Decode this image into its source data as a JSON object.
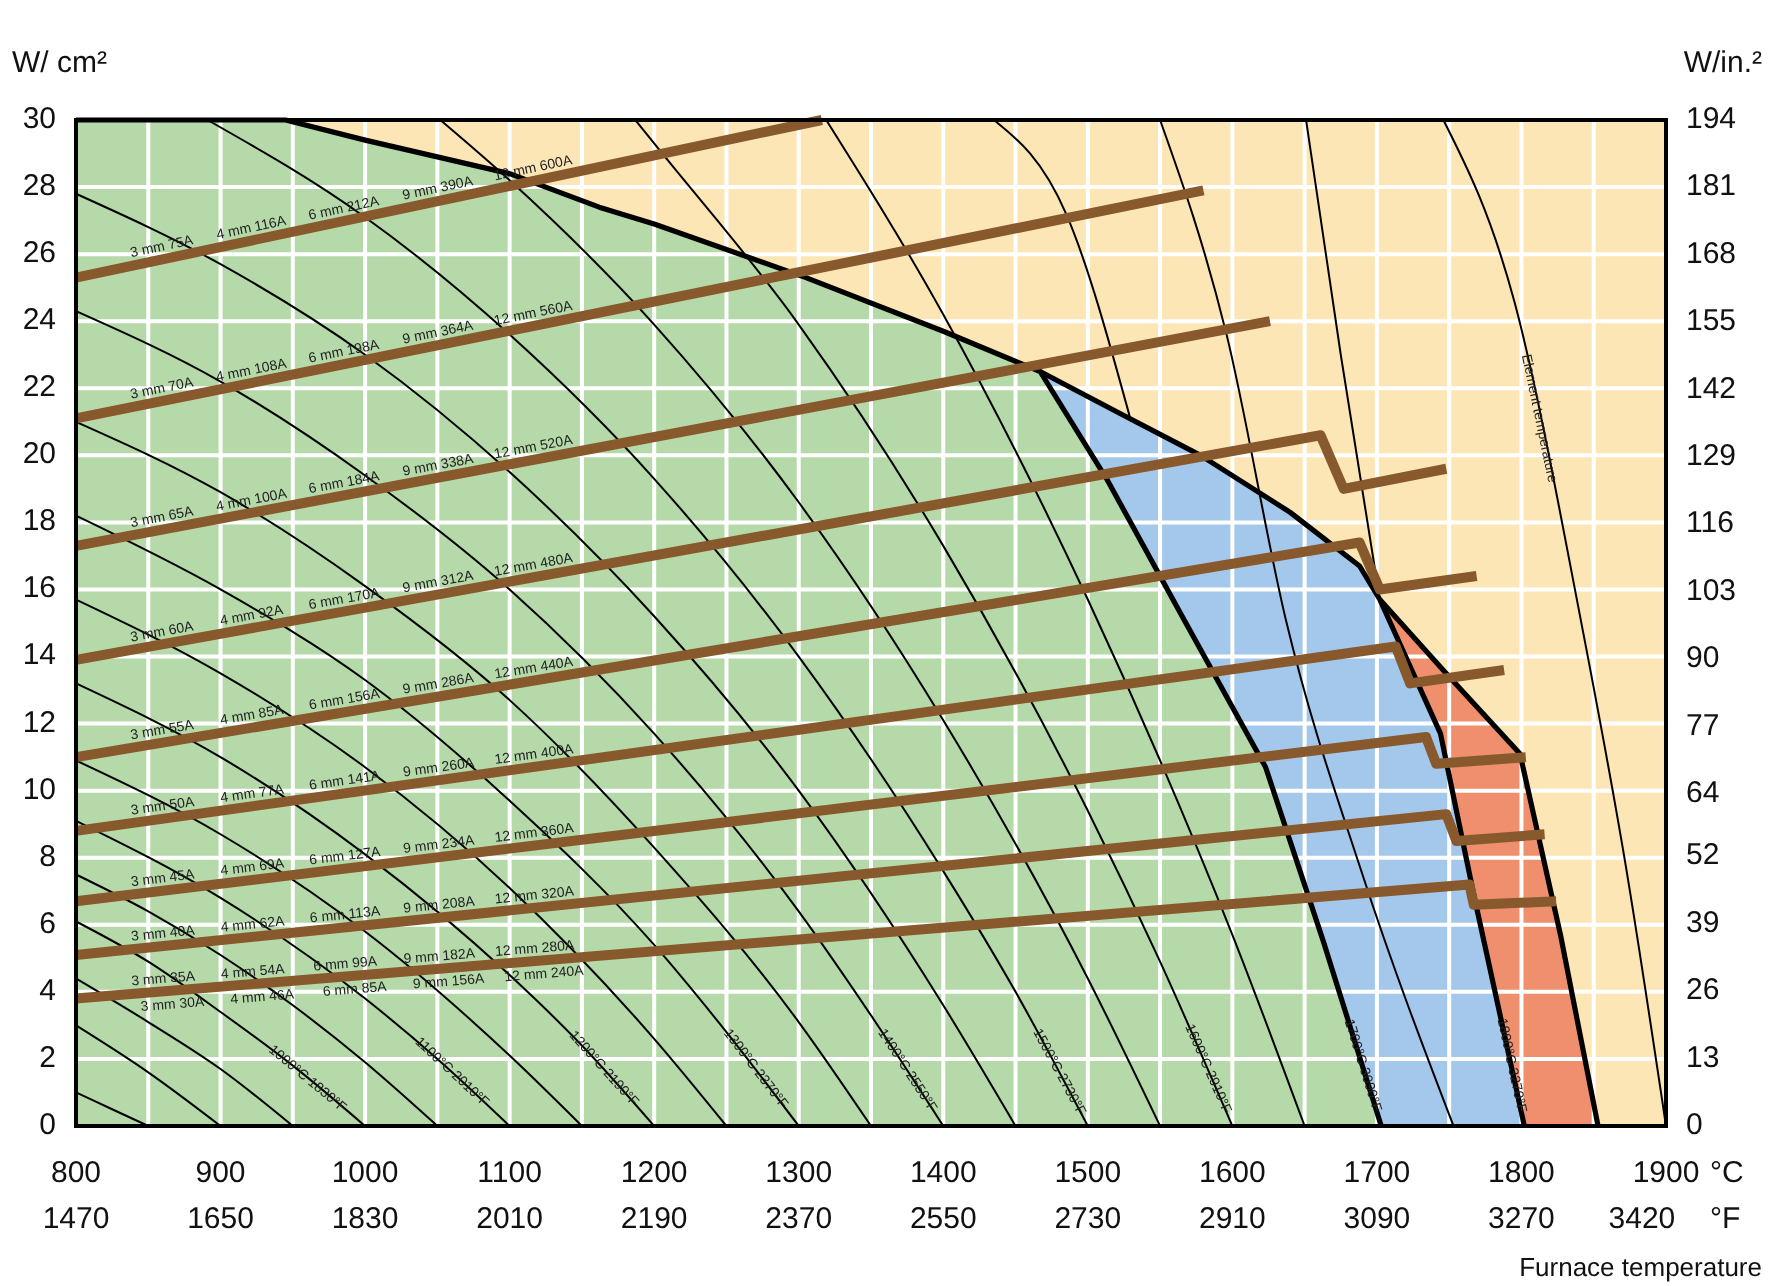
{
  "chart_data": {
    "type": "line",
    "xlabel": "Furnace temperature",
    "ylabel": "W/ cm²",
    "y2label": "W/in.²",
    "xlim": [
      800,
      1900
    ],
    "xticks": [
      800,
      {
        "value": 850,
        "label": null
      },
      900,
      {
        "value": 950,
        "label": null
      },
      1000,
      {
        "value": 1050,
        "label": null
      },
      1100,
      {
        "value": 1150,
        "label": null
      },
      1200,
      {
        "value": 1250,
        "label": null
      },
      1300,
      {
        "value": 1350,
        "label": null
      },
      1400,
      {
        "value": 1450,
        "label": null
      },
      1500,
      {
        "value": 1550,
        "label": null
      },
      1600,
      {
        "value": 1650,
        "label": null
      },
      1700,
      {
        "value": 1750,
        "label": null
      },
      1800,
      {
        "value": 1850,
        "label": null
      },
      1900
    ],
    "x2lim": [
      1470,
      3450
    ],
    "x2ticks": [
      1470,
      1650,
      1830,
      2010,
      2190,
      2370,
      2550,
      2730,
      2910,
      3090,
      3270,
      3420
    ],
    "ylim": [
      0,
      30
    ],
    "yticks": [
      0,
      2,
      4,
      6,
      8,
      10,
      12,
      14,
      16,
      18,
      20,
      22,
      24,
      26,
      28,
      30
    ],
    "y2lim": [
      0,
      194
    ],
    "y2ticks": [
      0,
      13,
      26,
      39,
      52,
      64,
      77,
      90,
      103,
      116,
      129,
      142,
      155,
      168,
      181,
      194
    ],
    "grid": true,
    "bands": [
      {
        "axis": "x",
        "from": 800,
        "to": 1900,
        "color": "#fde6b6"
      }
    ],
    "series": [
      {
        "type": "area",
        "color": "#ef8f6e",
        "x": [
          1702,
          1750,
          1799,
          1827,
          1853
        ],
        "values": [
          15.7,
          13.4,
          11.1,
          5.7,
          0
        ]
      },
      {
        "type": "area",
        "color": "#a3c8ec",
        "x": [
          1467,
          1520,
          1578,
          1640,
          1688,
          1702,
          1744,
          1767,
          1802
        ],
        "values": [
          22.5,
          21.3,
          20.0,
          18.3,
          16.7,
          15.7,
          11.7,
          6.9,
          0
        ]
      },
      {
        "type": "area",
        "color": "#b5d9a9",
        "x": [
          800,
          945,
          1000,
          1100,
          1162,
          1200,
          1305,
          1400,
          1467,
          1513,
          1564,
          1623,
          1663,
          1703
        ],
        "values": [
          30,
          30,
          29.4,
          28.4,
          27.4,
          26.9,
          25.3,
          23.7,
          22.5,
          19.3,
          15.3,
          10.7,
          5.5,
          0
        ]
      },
      {
        "color": "#000000",
        "x": [
          800,
          825,
          850
        ],
        "values": [
          1.0,
          0.5,
          0
        ]
      },
      {
        "color": "#000000",
        "x": [
          800,
          850,
          900
        ],
        "values": [
          3.0,
          1.6,
          0
        ]
      },
      {
        "color": "#000000",
        "x": [
          800,
          850,
          900,
          950
        ],
        "values": [
          4.4,
          3.1,
          1.7,
          0
        ]
      },
      {
        "color": "#000000",
        "x": [
          800,
          850,
          900,
          950,
          1000
        ],
        "values": [
          6.1,
          4.9,
          3.4,
          1.8,
          0
        ]
      },
      {
        "color": "#000000",
        "x": [
          800,
          850,
          900,
          950,
          1000,
          1050
        ],
        "values": [
          7.5,
          6.4,
          5.1,
          3.6,
          1.9,
          0
        ]
      },
      {
        "color": "#000000",
        "x": [
          800,
          900,
          1000,
          1050,
          1100
        ],
        "values": [
          9.1,
          6.8,
          3.8,
          2.0,
          0
        ]
      },
      {
        "color": "#000000",
        "x": [
          800,
          900,
          1000,
          1100,
          1150
        ],
        "values": [
          10.9,
          8.7,
          5.8,
          2.1,
          0
        ]
      },
      {
        "color": "#000000",
        "x": [
          800,
          900,
          1000,
          1100,
          1150,
          1200
        ],
        "values": [
          13.2,
          11.0,
          8.1,
          4.5,
          2.4,
          0
        ]
      },
      {
        "color": "#000000",
        "x": [
          800,
          900,
          1000,
          1100,
          1200,
          1250
        ],
        "values": [
          15.7,
          13.5,
          10.7,
          7.1,
          2.6,
          0
        ]
      },
      {
        "color": "#000000",
        "x": [
          800,
          900,
          1000,
          1100,
          1200,
          1250,
          1300
        ],
        "values": [
          18.2,
          16.0,
          13.3,
          9.7,
          5.4,
          2.8,
          0
        ]
      },
      {
        "color": "#000000",
        "x": [
          800,
          900,
          1000,
          1100,
          1200,
          1300,
          1350
        ],
        "values": [
          21.0,
          18.9,
          16.1,
          12.7,
          8.3,
          3.1,
          0
        ]
      },
      {
        "color": "#000000",
        "x": [
          800,
          900,
          1000,
          1100,
          1200,
          1300,
          1350,
          1400
        ],
        "values": [
          24.3,
          22.2,
          19.4,
          16.0,
          11.7,
          6.4,
          3.3,
          0
        ]
      },
      {
        "color": "#000000",
        "x": [
          800,
          900,
          1000,
          1100,
          1200,
          1300,
          1400,
          1450
        ],
        "values": [
          27.8,
          25.7,
          23.0,
          19.5,
          15.2,
          10.0,
          3.6,
          0
        ]
      },
      {
        "color": "#000000",
        "x": [
          891,
          1000,
          1100,
          1200,
          1300,
          1400,
          1450,
          1500
        ],
        "values": [
          30,
          27.1,
          23.6,
          19.3,
          14.0,
          7.6,
          4.0,
          0
        ]
      },
      {
        "color": "#000000",
        "x": [
          1052,
          1100,
          1200,
          1300,
          1400,
          1500,
          1550
        ],
        "values": [
          30,
          28.2,
          23.9,
          18.6,
          12.1,
          4.4,
          0
        ]
      },
      {
        "color": "#000000",
        "x": [
          1187,
          1200,
          1300,
          1400,
          1500,
          1550,
          1600
        ],
        "values": [
          30,
          29.3,
          23.9,
          17.3,
          9.4,
          4.9,
          0
        ]
      },
      {
        "color": "#000000",
        "x": [
          1319,
          1400,
          1500,
          1550,
          1600,
          1650
        ],
        "values": [
          30,
          24.2,
          15.7,
          10.9,
          5.7,
          0
        ]
      },
      {
        "color": "#000000",
        "x": [
          1435,
          1485,
          1530
        ],
        "values": [
          30,
          27.2,
          21.0
        ]
      },
      {
        "color": "#000000",
        "x": [
          1550,
          1596,
          1637,
          1690,
          1753
        ],
        "values": [
          30,
          23.6,
          15.1,
          7.5,
          0
        ]
      },
      {
        "color": "#000000",
        "x": [
          1651,
          1675,
          1702
        ],
        "values": [
          30,
          23.0,
          15.7
        ]
      },
      {
        "color": "#000000",
        "x": [
          1746,
          1795,
          1841,
          1872,
          1900
        ],
        "values": [
          30,
          24.6,
          15.1,
          7.8,
          0
        ]
      },
      {
        "color": "#87592d",
        "x": [
          800,
          1316
        ],
        "values": [
          25.3,
          30
        ]
      },
      {
        "color": "#87592d",
        "x": [
          800,
          1580
        ],
        "values": [
          21.1,
          27.9
        ]
      },
      {
        "color": "#87592d",
        "x": [
          800,
          1626
        ],
        "values": [
          17.3,
          24.0
        ]
      },
      {
        "color": "#87592d",
        "x": [
          800,
          1661,
          1677,
          1748
        ],
        "values": [
          13.9,
          20.6,
          19.0,
          19.6
        ]
      },
      {
        "color": "#87592d",
        "x": [
          800,
          1688,
          1702,
          1769
        ],
        "values": [
          11.0,
          17.4,
          16.0,
          16.4
        ]
      },
      {
        "color": "#87592d",
        "x": [
          800,
          1713,
          1723,
          1788
        ],
        "values": [
          8.8,
          14.3,
          13.2,
          13.6
        ]
      },
      {
        "color": "#87592d",
        "x": [
          800,
          1734,
          1741,
          1803
        ],
        "values": [
          6.7,
          11.6,
          10.8,
          11.0
        ]
      },
      {
        "color": "#87592d",
        "x": [
          800,
          1748,
          1755,
          1816
        ],
        "values": [
          5.1,
          9.3,
          8.5,
          8.7
        ]
      },
      {
        "color": "#87592d",
        "x": [
          800,
          1764,
          1767,
          1824
        ],
        "values": [
          3.8,
          7.2,
          6.6,
          6.7
        ]
      }
    ],
    "annotations": [
      "°C",
      "°F",
      {
        "text": "3 mm 75A",
        "x": 861,
        "y": 25.86
      },
      {
        "text": "4 mm 116A",
        "x": 923,
        "y": 26.42
      },
      {
        "text": "6 mm 212A",
        "x": 987,
        "y": 27.0
      },
      {
        "text": "9 mm 390A",
        "x": 1052,
        "y": 27.6
      },
      {
        "text": "12 mm 600A",
        "x": 1118,
        "y": 28.2
      },
      {
        "text": "3 mm 70A",
        "x": 861,
        "y": 21.63
      },
      {
        "text": "4 mm 108A",
        "x": 923,
        "y": 22.17
      },
      {
        "text": "6 mm 198A",
        "x": 987,
        "y": 22.73
      },
      {
        "text": "9 mm 364A",
        "x": 1052,
        "y": 23.3
      },
      {
        "text": "12 mm 560A",
        "x": 1118,
        "y": 23.87
      },
      {
        "text": "3 mm 65A",
        "x": 861,
        "y": 17.79
      },
      {
        "text": "4 mm 100A",
        "x": 923,
        "y": 18.3
      },
      {
        "text": "6 mm 184A",
        "x": 987,
        "y": 18.82
      },
      {
        "text": "9 mm 338A",
        "x": 1052,
        "y": 19.34
      },
      {
        "text": "12 mm 520A",
        "x": 1118,
        "y": 19.88
      },
      {
        "text": "3 mm 60A",
        "x": 861,
        "y": 14.37
      },
      {
        "text": "4 mm 92A",
        "x": 923,
        "y": 14.86
      },
      {
        "text": "6 mm 170A",
        "x": 987,
        "y": 15.35
      },
      {
        "text": "9 mm 312A",
        "x": 1052,
        "y": 15.86
      },
      {
        "text": "12 mm 480A",
        "x": 1118,
        "y": 16.37
      },
      {
        "text": "3 mm 55A",
        "x": 861,
        "y": 11.44
      },
      {
        "text": "4 mm 85A",
        "x": 923,
        "y": 11.89
      },
      {
        "text": "6 mm 156A",
        "x": 987,
        "y": 12.35
      },
      {
        "text": "9 mm 286A",
        "x": 1052,
        "y": 12.82
      },
      {
        "text": "12 mm 440A",
        "x": 1118,
        "y": 13.29
      },
      {
        "text": "3 mm 50A",
        "x": 861,
        "y": 9.17
      },
      {
        "text": "4 mm 77A",
        "x": 923,
        "y": 9.54
      },
      {
        "text": "6 mm 141A",
        "x": 987,
        "y": 9.93
      },
      {
        "text": "9 mm 260A",
        "x": 1052,
        "y": 10.32
      },
      {
        "text": "12 mm 400A",
        "x": 1118,
        "y": 10.71
      },
      {
        "text": "3 mm 45A",
        "x": 861,
        "y": 7.02
      },
      {
        "text": "4 mm 69A",
        "x": 923,
        "y": 7.35
      },
      {
        "text": "6 mm 127A",
        "x": 987,
        "y": 7.68
      },
      {
        "text": "9 mm 234A",
        "x": 1052,
        "y": 8.02
      },
      {
        "text": "12 mm 360A",
        "x": 1118,
        "y": 8.37
      },
      {
        "text": "3 mm 40A",
        "x": 861,
        "y": 5.37
      },
      {
        "text": "4 mm 62A",
        "x": 923,
        "y": 5.64
      },
      {
        "text": "6 mm 113A",
        "x": 987,
        "y": 5.93
      },
      {
        "text": "9 mm 208A",
        "x": 1052,
        "y": 6.22
      },
      {
        "text": "12 mm 320A",
        "x": 1118,
        "y": 6.51
      },
      {
        "text": "3 mm 35A",
        "x": 861,
        "y": 4.02
      },
      {
        "text": "4 mm 54A",
        "x": 923,
        "y": 4.23
      },
      {
        "text": "6 mm 99A",
        "x": 987,
        "y": 4.46
      },
      {
        "text": "9 mm 182A",
        "x": 1052,
        "y": 4.69
      },
      {
        "text": "12 mm 280A",
        "x": 1118,
        "y": 4.92
      },
      {
        "text": "3 mm 30A",
        "x": 866,
        "y": 4.03
      },
      {
        "text": "4 mm 46A",
        "x": 928,
        "y": 4.25
      },
      {
        "text": "6 mm 85A",
        "x": 992,
        "y": 4.48
      },
      {
        "text": "9 mm 156A",
        "x": 1057,
        "y": 4.71
      },
      {
        "text": "12 mm 240A",
        "x": 1123,
        "y": 4.94
      },
      {
        "text": "1000°C 1830°F",
        "x": 960,
        "y": 1.4
      },
      {
        "text": "1100°C 2010°F",
        "x": 1060,
        "y": 1.6
      },
      {
        "text": "1200°C 2190°F",
        "x": 1165,
        "y": 1.7
      },
      {
        "text": "1300°C 2370°F",
        "x": 1270,
        "y": 1.7
      },
      {
        "text": "1400°C 2550°F",
        "x": 1375,
        "y": 1.65
      },
      {
        "text": "1500°C 2730°F",
        "x": 1480,
        "y": 1.6
      },
      {
        "text": "1600°C 2910°F",
        "x": 1583,
        "y": 1.7
      },
      {
        "text": "1700°C 3090°F",
        "x": 1690,
        "y": 1.8
      },
      {
        "text": "1800°C 3270°F",
        "x": 1793,
        "y": 1.8
      },
      {
        "text": "Element temperature",
        "x": 1812,
        "y": 21.1
      }
    ]
  }
}
